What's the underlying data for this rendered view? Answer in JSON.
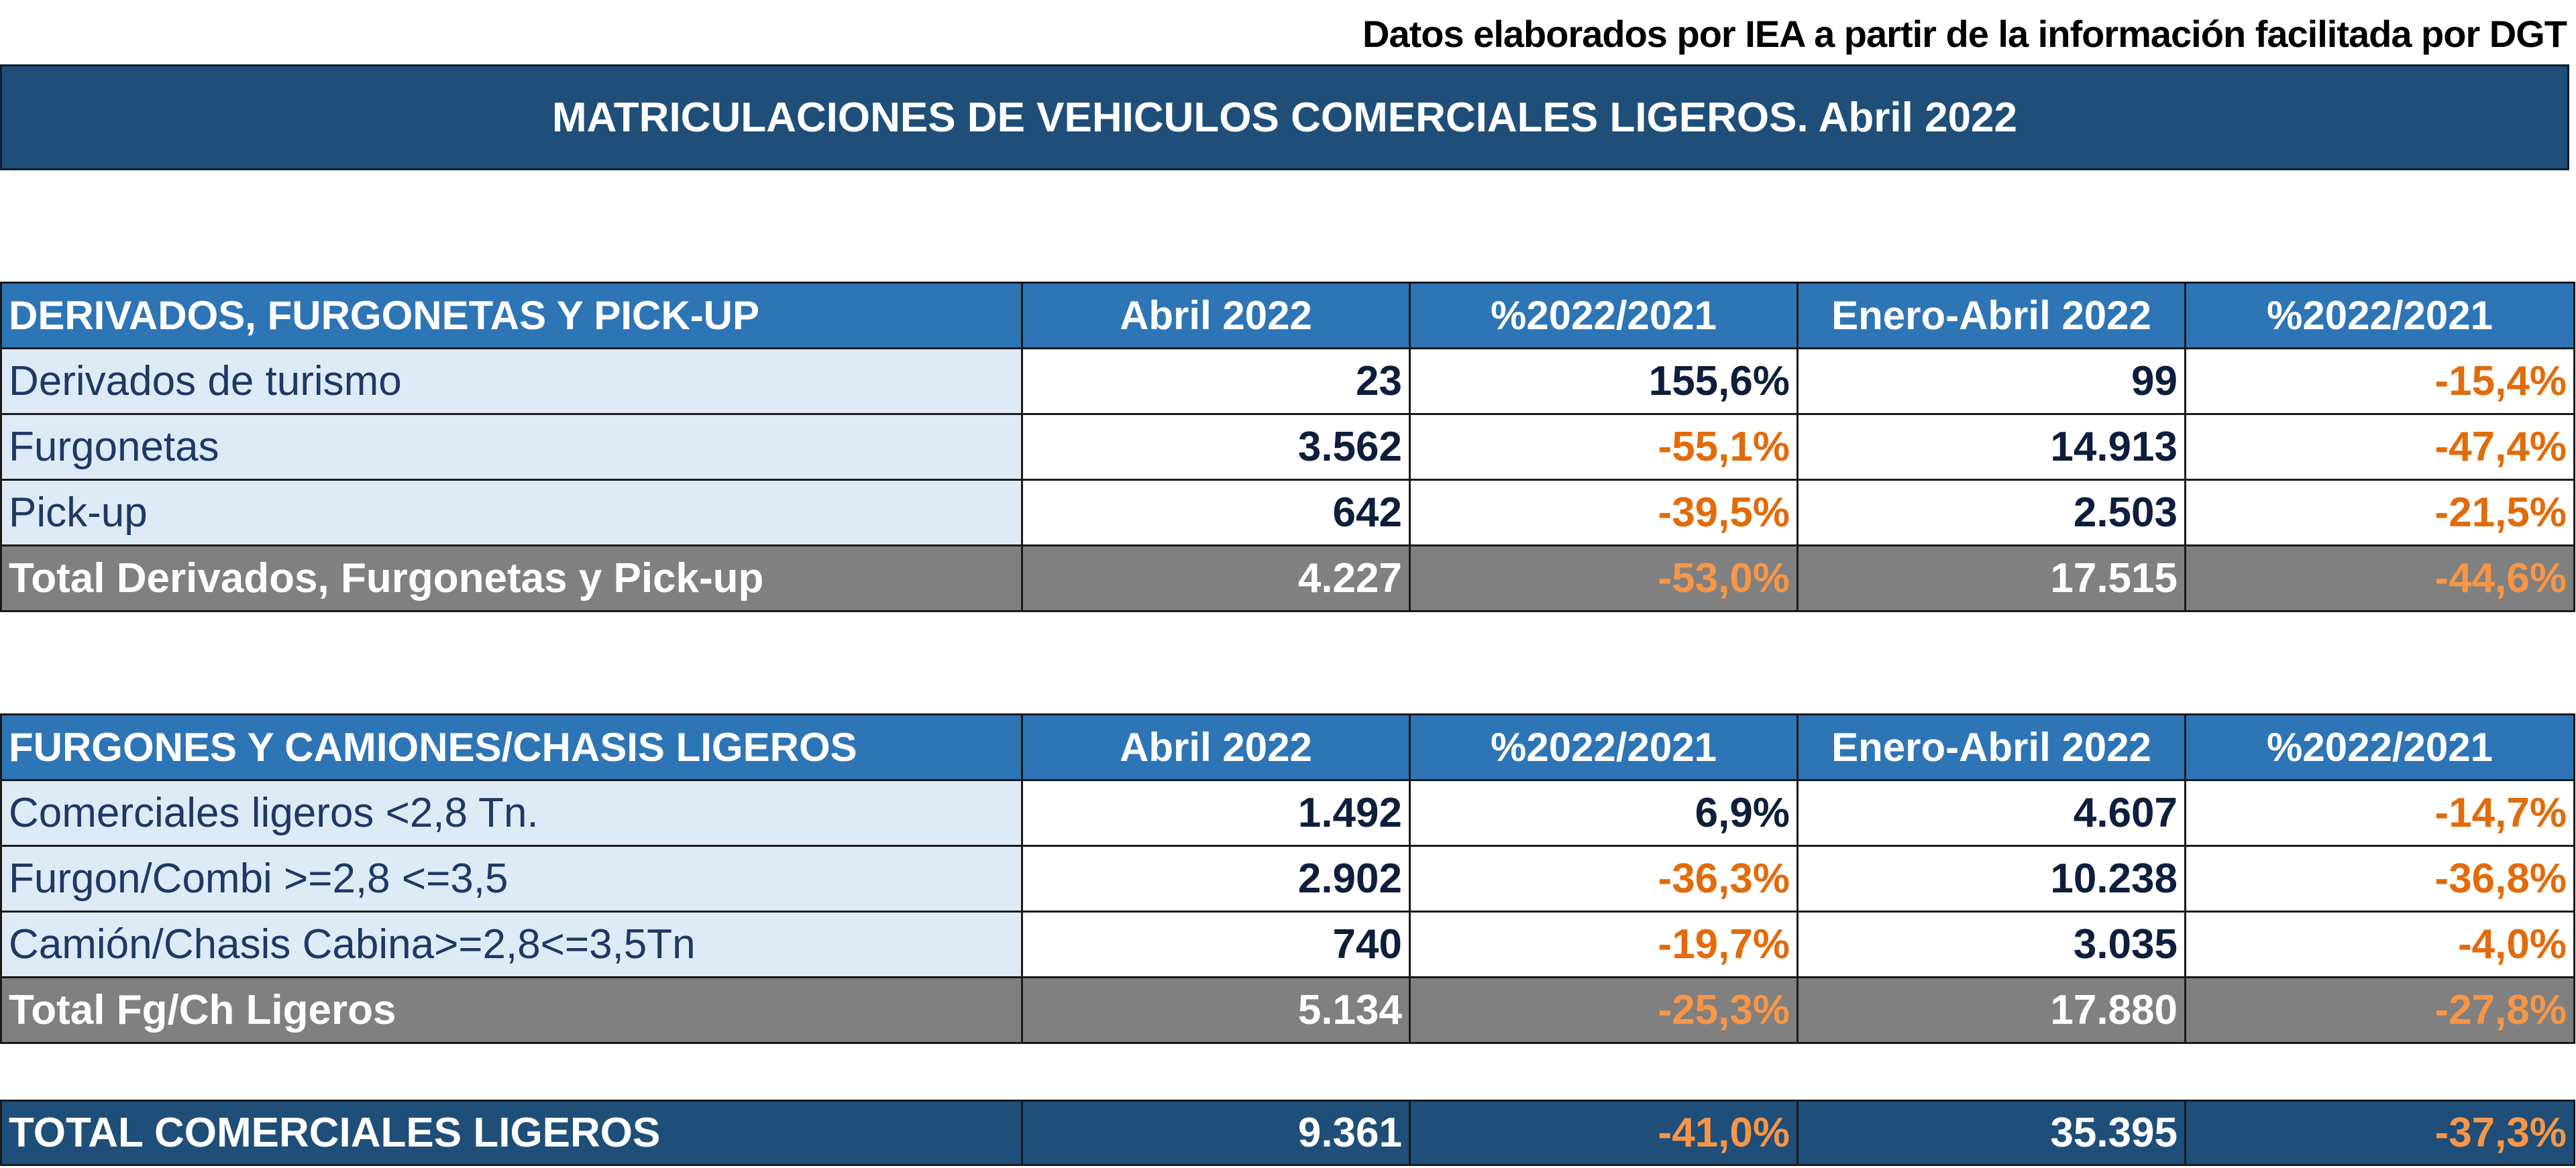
{
  "source_note": "Datos elaborados por IEA a partir de la información facilitada por DGT",
  "title": "MATRICULACIONES DE VEHICULOS COMERCIALES LIGEROS. Abril 2022",
  "colors": {
    "banner": "#1f4e79",
    "header": "#2e75b6",
    "label_bg": "#ddebf7",
    "total_bg": "#808080",
    "negative": "#e26b0a"
  },
  "table1": {
    "headers": [
      "DERIVADOS, FURGONETAS Y PICK-UP",
      "Abril 2022",
      "%2022/2021",
      "Enero-Abril 2022",
      "%2022/2021"
    ],
    "rows": [
      [
        "Derivados de turismo",
        "23",
        "155,6%",
        "99",
        "-15,4%"
      ],
      [
        "Furgonetas",
        "3.562",
        "-55,1%",
        "14.913",
        "-47,4%"
      ],
      [
        "Pick-up",
        "642",
        "-39,5%",
        "2.503",
        "-21,5%"
      ]
    ],
    "total": [
      "Total Derivados, Furgonetas y Pick-up",
      "4.227",
      "-53,0%",
      "17.515",
      "-44,6%"
    ]
  },
  "table2": {
    "headers": [
      "FURGONES Y CAMIONES/CHASIS LIGEROS",
      "Abril 2022",
      "%2022/2021",
      "Enero-Abril 2022",
      "%2022/2021"
    ],
    "rows": [
      [
        "Comerciales ligeros <2,8 Tn.",
        "1.492",
        "6,9%",
        "4.607",
        "-14,7%"
      ],
      [
        "Furgon/Combi >=2,8 <=3,5",
        "2.902",
        "-36,3%",
        "10.238",
        "-36,8%"
      ],
      [
        "Camión/Chasis Cabina>=2,8<=3,5Tn",
        "740",
        "-19,7%",
        "3.035",
        "-4,0%"
      ]
    ],
    "total": [
      "Total Fg/Ch Ligeros",
      "5.134",
      "-25,3%",
      "17.880",
      "-27,8%"
    ]
  },
  "grand_total": [
    "TOTAL COMERCIALES LIGEROS",
    "9.361",
    "-41,0%",
    "35.395",
    "-37,3%"
  ]
}
